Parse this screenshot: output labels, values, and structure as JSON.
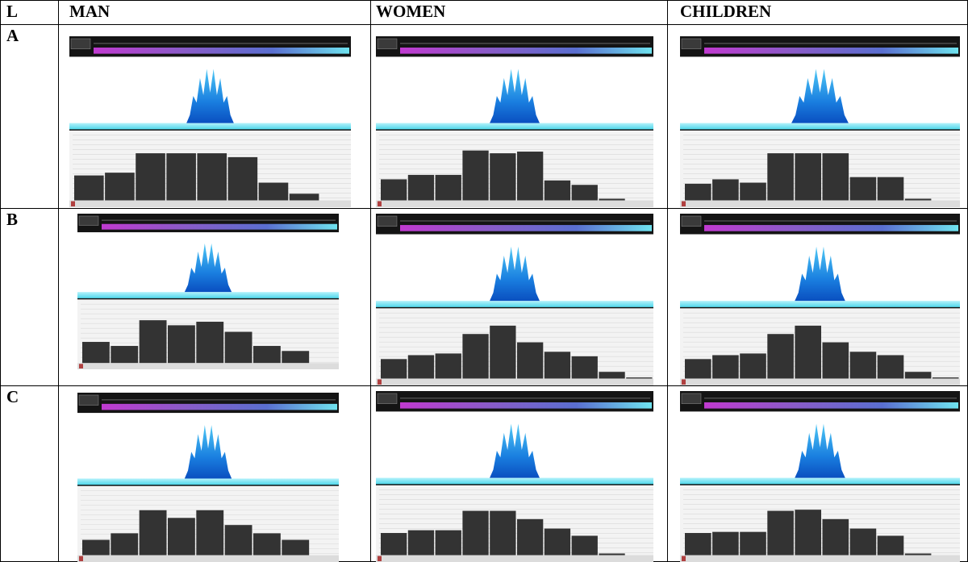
{
  "table": {
    "header": [
      "L",
      "MAN",
      "WOMEN",
      "CHILDREN"
    ],
    "rows": [
      [
        "A"
      ],
      [
        "B"
      ],
      [
        "C"
      ]
    ]
  }
}
